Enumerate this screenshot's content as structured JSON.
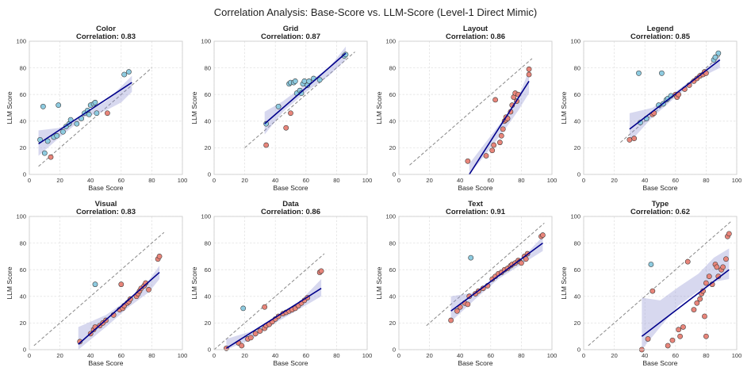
{
  "colors": {
    "above": "#8ecbe0",
    "below": "#e8857a",
    "fit": "#00008b",
    "ci": "#8c8fd2",
    "identity": "#888888"
  },
  "chart_data": {
    "type": "scatter",
    "title": "Correlation Analysis: Base-Score vs. LLM-Score (Level-1 Direct Mimic)",
    "xlabel": "Base Score",
    "ylabel": "LLM Score",
    "xlim": [
      0,
      100
    ],
    "ylim": [
      0,
      100
    ],
    "ticks": [
      0,
      20,
      40,
      60,
      80,
      100
    ],
    "grid": true,
    "panels": [
      {
        "name": "Color",
        "correlation_label": "Correlation: 0.83",
        "identity": [
          6,
          80
        ],
        "fit": {
          "x": [
            6,
            67
          ],
          "y": [
            23,
            69
          ]
        },
        "ci_top": [
          [
            6,
            33
          ],
          [
            20,
            35
          ],
          [
            36,
            46
          ],
          [
            50,
            55
          ],
          [
            60,
            66
          ],
          [
            67,
            74
          ]
        ],
        "ci_bot": [
          [
            6,
            14
          ],
          [
            20,
            28
          ],
          [
            36,
            43
          ],
          [
            50,
            48
          ],
          [
            60,
            54
          ],
          [
            67,
            62
          ]
        ],
        "points": [
          [
            7,
            26
          ],
          [
            9,
            51
          ],
          [
            10,
            16
          ],
          [
            12,
            25
          ],
          [
            14,
            13
          ],
          [
            16,
            28
          ],
          [
            18,
            29
          ],
          [
            19,
            52
          ],
          [
            22,
            32
          ],
          [
            24,
            36
          ],
          [
            26,
            38
          ],
          [
            27,
            41
          ],
          [
            31,
            38
          ],
          [
            34,
            42
          ],
          [
            36,
            46
          ],
          [
            38,
            48
          ],
          [
            39,
            45
          ],
          [
            40,
            52
          ],
          [
            42,
            53
          ],
          [
            43,
            54
          ],
          [
            44,
            46
          ],
          [
            51,
            46
          ],
          [
            62,
            75
          ],
          [
            65,
            77
          ]
        ]
      },
      {
        "name": "Grid",
        "correlation_label": "Correlation: 0.87",
        "identity": [
          20,
          92
        ],
        "fit": {
          "x": [
            33,
            86
          ],
          "y": [
            38,
            91
          ]
        },
        "ci_top": [
          [
            33,
            47
          ],
          [
            45,
            55
          ],
          [
            60,
            68
          ],
          [
            75,
            80
          ],
          [
            86,
            96
          ]
        ],
        "ci_bot": [
          [
            33,
            30
          ],
          [
            45,
            47
          ],
          [
            60,
            62
          ],
          [
            75,
            74
          ],
          [
            86,
            86
          ]
        ],
        "points": [
          [
            34,
            22
          ],
          [
            34,
            38
          ],
          [
            42,
            51
          ],
          [
            47,
            35
          ],
          [
            49,
            68
          ],
          [
            50,
            69
          ],
          [
            50,
            46
          ],
          [
            52,
            69
          ],
          [
            53,
            70
          ],
          [
            54,
            61
          ],
          [
            56,
            63
          ],
          [
            57,
            61
          ],
          [
            58,
            68
          ],
          [
            59,
            70
          ],
          [
            61,
            67
          ],
          [
            62,
            70
          ],
          [
            65,
            72
          ],
          [
            69,
            71
          ],
          [
            85,
            89
          ],
          [
            86,
            90
          ]
        ]
      },
      {
        "name": "Layout",
        "correlation_label": "Correlation: 0.86",
        "identity": [
          7,
          87
        ],
        "fit": {
          "x": [
            46,
            85
          ],
          "y": [
            0,
            70
          ]
        },
        "ci_top": [
          [
            46,
            8
          ],
          [
            58,
            26
          ],
          [
            70,
            44
          ],
          [
            78,
            58
          ],
          [
            85,
            78
          ]
        ],
        "ci_bot": [
          [
            46,
            0
          ],
          [
            58,
            17
          ],
          [
            70,
            35
          ],
          [
            78,
            48
          ],
          [
            85,
            61
          ]
        ],
        "points": [
          [
            45,
            10
          ],
          [
            57,
            14
          ],
          [
            61,
            18
          ],
          [
            62,
            22
          ],
          [
            63,
            56
          ],
          [
            66,
            24
          ],
          [
            67,
            29
          ],
          [
            68,
            34
          ],
          [
            69,
            40
          ],
          [
            70,
            41
          ],
          [
            70,
            43
          ],
          [
            71,
            42
          ],
          [
            73,
            47
          ],
          [
            74,
            52
          ],
          [
            75,
            58
          ],
          [
            76,
            61
          ],
          [
            77,
            55
          ],
          [
            78,
            60
          ],
          [
            85,
            79
          ],
          [
            85,
            75
          ]
        ]
      },
      {
        "name": "Legend",
        "correlation_label": "Correlation: 0.85",
        "identity": [
          24,
          90
        ],
        "fit": {
          "x": [
            30,
            89
          ],
          "y": [
            34,
            86
          ]
        },
        "ci_top": [
          [
            30,
            46
          ],
          [
            45,
            50
          ],
          [
            60,
            62
          ],
          [
            75,
            75
          ],
          [
            89,
            88
          ]
        ],
        "ci_bot": [
          [
            30,
            24
          ],
          [
            45,
            43
          ],
          [
            60,
            58
          ],
          [
            75,
            72
          ],
          [
            89,
            80
          ]
        ],
        "points": [
          [
            30,
            26
          ],
          [
            33,
            27
          ],
          [
            37,
            39
          ],
          [
            41,
            42
          ],
          [
            45,
            45
          ],
          [
            46,
            46
          ],
          [
            49,
            52
          ],
          [
            52,
            53
          ],
          [
            54,
            56
          ],
          [
            55,
            57
          ],
          [
            57,
            59
          ],
          [
            60,
            60
          ],
          [
            61,
            58
          ],
          [
            62,
            60
          ],
          [
            66,
            64
          ],
          [
            69,
            67
          ],
          [
            72,
            70
          ],
          [
            74,
            72
          ],
          [
            76,
            74
          ],
          [
            78,
            75
          ],
          [
            79,
            77
          ],
          [
            80,
            76
          ],
          [
            85,
            86
          ],
          [
            86,
            88
          ],
          [
            88,
            91
          ],
          [
            36,
            76
          ],
          [
            51,
            76
          ]
        ]
      },
      {
        "name": "Visual",
        "correlation_label": "Correlation: 0.83",
        "identity": [
          3,
          88
        ],
        "fit": {
          "x": [
            32,
            85
          ],
          "y": [
            4,
            58
          ]
        },
        "ci_top": [
          [
            32,
            17
          ],
          [
            50,
            26
          ],
          [
            65,
            38
          ],
          [
            78,
            52
          ],
          [
            85,
            63
          ]
        ],
        "ci_bot": [
          [
            32,
            0
          ],
          [
            50,
            17
          ],
          [
            65,
            32
          ],
          [
            78,
            43
          ],
          [
            85,
            53
          ]
        ],
        "points": [
          [
            33,
            6
          ],
          [
            40,
            12
          ],
          [
            42,
            15
          ],
          [
            43,
            17
          ],
          [
            46,
            18
          ],
          [
            48,
            20
          ],
          [
            50,
            22
          ],
          [
            55,
            26
          ],
          [
            59,
            30
          ],
          [
            61,
            31
          ],
          [
            62,
            33
          ],
          [
            64,
            35
          ],
          [
            65,
            36
          ],
          [
            66,
            38
          ],
          [
            70,
            40
          ],
          [
            71,
            42
          ],
          [
            72,
            44
          ],
          [
            73,
            46
          ],
          [
            75,
            48
          ],
          [
            76,
            50
          ],
          [
            78,
            45
          ],
          [
            84,
            68
          ],
          [
            85,
            70
          ],
          [
            60,
            49
          ],
          [
            43,
            49
          ]
        ]
      },
      {
        "name": "Data",
        "correlation_label": "Correlation: 0.86",
        "identity": [
          0,
          72
        ],
        "fit": {
          "x": [
            8,
            70
          ],
          "y": [
            1,
            46
          ]
        },
        "ci_top": [
          [
            8,
            8
          ],
          [
            25,
            14
          ],
          [
            40,
            24
          ],
          [
            55,
            35
          ],
          [
            70,
            53
          ]
        ],
        "ci_bot": [
          [
            8,
            0
          ],
          [
            25,
            8
          ],
          [
            40,
            20
          ],
          [
            55,
            30
          ],
          [
            70,
            40
          ]
        ],
        "points": [
          [
            8,
            1
          ],
          [
            16,
            5
          ],
          [
            18,
            3
          ],
          [
            22,
            8
          ],
          [
            24,
            9
          ],
          [
            27,
            12
          ],
          [
            30,
            14
          ],
          [
            33,
            16
          ],
          [
            34,
            18
          ],
          [
            36,
            19
          ],
          [
            38,
            21
          ],
          [
            40,
            23
          ],
          [
            42,
            25
          ],
          [
            45,
            27
          ],
          [
            47,
            28
          ],
          [
            49,
            29
          ],
          [
            51,
            30
          ],
          [
            53,
            31
          ],
          [
            55,
            33
          ],
          [
            57,
            35
          ],
          [
            59,
            37
          ],
          [
            61,
            39
          ],
          [
            69,
            58
          ],
          [
            70,
            59
          ],
          [
            19,
            31
          ],
          [
            33,
            32
          ]
        ]
      },
      {
        "name": "Text",
        "correlation_label": "Correlation: 0.91",
        "identity": [
          18,
          95
        ],
        "fit": {
          "x": [
            34,
            94
          ],
          "y": [
            29,
            80
          ]
        },
        "ci_top": [
          [
            34,
            40
          ],
          [
            50,
            43
          ],
          [
            65,
            57
          ],
          [
            80,
            68
          ],
          [
            94,
            85
          ]
        ],
        "ci_bot": [
          [
            34,
            21
          ],
          [
            50,
            38
          ],
          [
            65,
            53
          ],
          [
            80,
            64
          ],
          [
            94,
            74
          ]
        ],
        "points": [
          [
            34,
            22
          ],
          [
            38,
            29
          ],
          [
            40,
            32
          ],
          [
            43,
            35
          ],
          [
            45,
            34
          ],
          [
            46,
            40
          ],
          [
            50,
            42
          ],
          [
            52,
            44
          ],
          [
            55,
            46
          ],
          [
            58,
            48
          ],
          [
            61,
            53
          ],
          [
            63,
            55
          ],
          [
            65,
            57
          ],
          [
            67,
            58
          ],
          [
            69,
            60
          ],
          [
            71,
            61
          ],
          [
            73,
            63
          ],
          [
            74,
            64
          ],
          [
            76,
            65
          ],
          [
            78,
            67
          ],
          [
            79,
            66
          ],
          [
            80,
            65
          ],
          [
            82,
            70
          ],
          [
            83,
            68
          ],
          [
            84,
            72
          ],
          [
            93,
            85
          ],
          [
            94,
            86
          ],
          [
            47,
            69
          ]
        ]
      },
      {
        "name": "Type",
        "correlation_label": "Correlation: 0.62",
        "identity": [
          3,
          96
        ],
        "fit": {
          "x": [
            38,
            95
          ],
          "y": [
            10,
            60
          ]
        },
        "ci_top": [
          [
            38,
            39
          ],
          [
            50,
            37
          ],
          [
            62,
            47
          ],
          [
            75,
            57
          ],
          [
            85,
            69
          ],
          [
            95,
            76
          ]
        ],
        "ci_bot": [
          [
            38,
            0
          ],
          [
            50,
            17
          ],
          [
            62,
            33
          ],
          [
            75,
            44
          ],
          [
            85,
            51
          ],
          [
            95,
            53
          ]
        ],
        "points": [
          [
            38,
            0
          ],
          [
            42,
            8
          ],
          [
            45,
            44
          ],
          [
            55,
            3
          ],
          [
            58,
            7
          ],
          [
            62,
            15
          ],
          [
            63,
            10
          ],
          [
            65,
            17
          ],
          [
            68,
            66
          ],
          [
            72,
            30
          ],
          [
            74,
            35
          ],
          [
            76,
            38
          ],
          [
            77,
            42
          ],
          [
            78,
            44
          ],
          [
            79,
            25
          ],
          [
            80,
            50
          ],
          [
            80,
            10
          ],
          [
            82,
            55
          ],
          [
            84,
            49
          ],
          [
            86,
            64
          ],
          [
            87,
            62
          ],
          [
            88,
            55
          ],
          [
            90,
            60
          ],
          [
            91,
            62
          ],
          [
            93,
            68
          ],
          [
            94,
            85
          ],
          [
            95,
            87
          ],
          [
            44,
            64
          ]
        ]
      }
    ]
  }
}
